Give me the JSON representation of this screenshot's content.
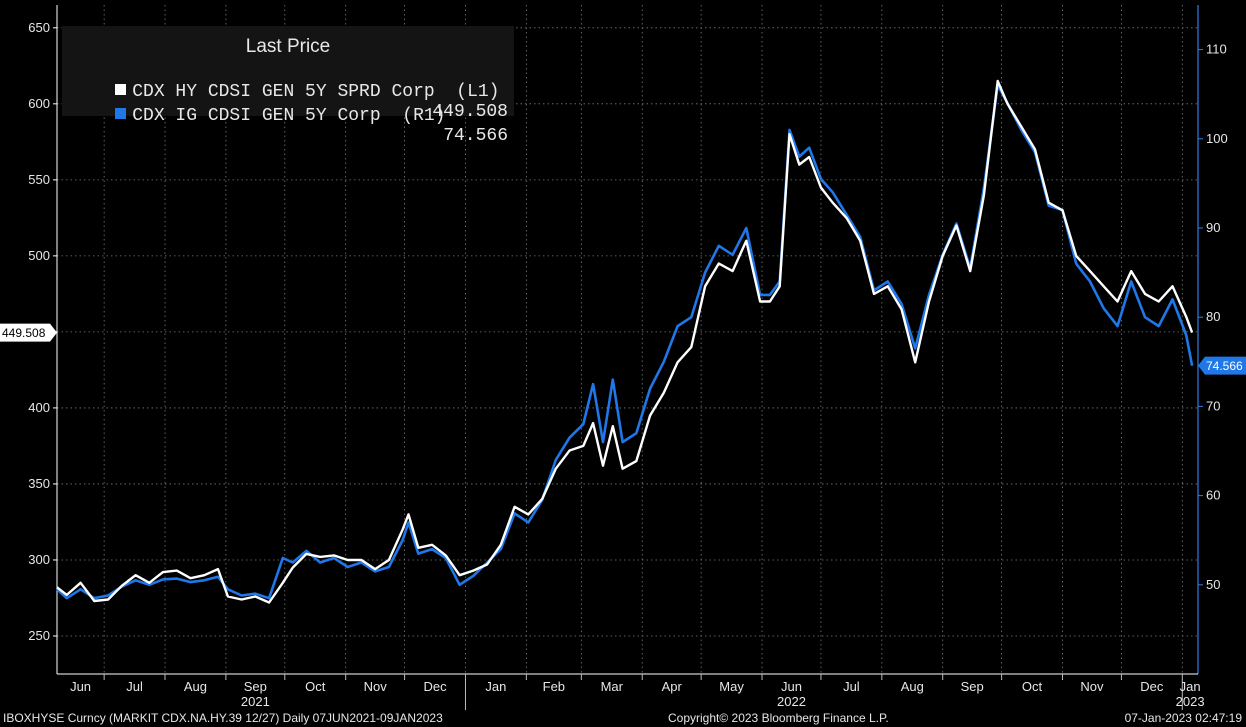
{
  "chart_data": {
    "type": "line",
    "legend": {
      "title": "Last Price",
      "placement": "top-left",
      "entries": [
        {
          "name": "CDX HY CDSI GEN 5Y SPRD Corp",
          "axis_tag": "(L1)",
          "last_price": "449.508",
          "color": "#ffffff"
        },
        {
          "name": "CDX IG CDSI GEN 5Y Corp",
          "axis_tag": "(R1)",
          "last_price": "74.566",
          "color": "#1f77e8"
        }
      ]
    },
    "left_axis": {
      "min": 225,
      "max": 665,
      "ticks": [
        250,
        300,
        350,
        400,
        450,
        500,
        550,
        600,
        650
      ]
    },
    "right_axis": {
      "min": 40,
      "max": 115,
      "ticks": [
        50,
        60,
        70,
        80,
        90,
        100,
        110
      ]
    },
    "last_value_labels": {
      "left": "449.508",
      "right": "74.566"
    },
    "x_axis": {
      "months": [
        "Jun",
        "Jul",
        "Aug",
        "Sep",
        "Oct",
        "Nov",
        "Dec",
        "Jan",
        "Feb",
        "Mar",
        "Apr",
        "May",
        "Jun",
        "Jul",
        "Aug",
        "Sep",
        "Oct",
        "Nov",
        "Dec",
        "Jan"
      ],
      "years": [
        {
          "label": "2021",
          "month_index": 3
        },
        {
          "label": "2022",
          "month_index": 12
        },
        {
          "label": "2023",
          "month_index": 19
        }
      ]
    },
    "grid": true,
    "series": [
      {
        "name": "CDX HY CDSI GEN 5Y SPRD Corp",
        "axis": "left",
        "color": "#ffffff",
        "points": [
          [
            "2021-06-07",
            282
          ],
          [
            "2021-06-12",
            277
          ],
          [
            "2021-06-19",
            285
          ],
          [
            "2021-06-26",
            273
          ],
          [
            "2021-07-03",
            274
          ],
          [
            "2021-07-10",
            283
          ],
          [
            "2021-07-17",
            290
          ],
          [
            "2021-07-24",
            285
          ],
          [
            "2021-07-31",
            292
          ],
          [
            "2021-08-07",
            293
          ],
          [
            "2021-08-14",
            288
          ],
          [
            "2021-08-21",
            290
          ],
          [
            "2021-08-28",
            294
          ],
          [
            "2021-09-02",
            276
          ],
          [
            "2021-09-09",
            274
          ],
          [
            "2021-09-16",
            276
          ],
          [
            "2021-09-23",
            272
          ],
          [
            "2021-09-30",
            285
          ],
          [
            "2021-10-05",
            295
          ],
          [
            "2021-10-12",
            304
          ],
          [
            "2021-10-19",
            302
          ],
          [
            "2021-10-26",
            303
          ],
          [
            "2021-11-02",
            300
          ],
          [
            "2021-11-09",
            300
          ],
          [
            "2021-11-16",
            294
          ],
          [
            "2021-11-23",
            300
          ],
          [
            "2021-11-30",
            320
          ],
          [
            "2021-12-03",
            330
          ],
          [
            "2021-12-08",
            308
          ],
          [
            "2021-12-15",
            310
          ],
          [
            "2021-12-22",
            303
          ],
          [
            "2021-12-29",
            290
          ],
          [
            "2022-01-05",
            293
          ],
          [
            "2022-01-12",
            297
          ],
          [
            "2022-01-19",
            310
          ],
          [
            "2022-01-26",
            335
          ],
          [
            "2022-02-02",
            330
          ],
          [
            "2022-02-09",
            340
          ],
          [
            "2022-02-16",
            360
          ],
          [
            "2022-02-23",
            372
          ],
          [
            "2022-03-02",
            375
          ],
          [
            "2022-03-07",
            390
          ],
          [
            "2022-03-12",
            362
          ],
          [
            "2022-03-17",
            388
          ],
          [
            "2022-03-22",
            360
          ],
          [
            "2022-03-29",
            365
          ],
          [
            "2022-04-05",
            395
          ],
          [
            "2022-04-12",
            410
          ],
          [
            "2022-04-19",
            430
          ],
          [
            "2022-04-26",
            440
          ],
          [
            "2022-05-03",
            480
          ],
          [
            "2022-05-10",
            495
          ],
          [
            "2022-05-17",
            490
          ],
          [
            "2022-05-24",
            510
          ],
          [
            "2022-05-31",
            470
          ],
          [
            "2022-06-05",
            470
          ],
          [
            "2022-06-10",
            480
          ],
          [
            "2022-06-15",
            580
          ],
          [
            "2022-06-20",
            560
          ],
          [
            "2022-06-25",
            565
          ],
          [
            "2022-07-01",
            545
          ],
          [
            "2022-07-07",
            535
          ],
          [
            "2022-07-14",
            525
          ],
          [
            "2022-07-21",
            510
          ],
          [
            "2022-07-28",
            475
          ],
          [
            "2022-08-04",
            480
          ],
          [
            "2022-08-11",
            465
          ],
          [
            "2022-08-18",
            430
          ],
          [
            "2022-08-25",
            470
          ],
          [
            "2022-09-01",
            500
          ],
          [
            "2022-09-08",
            520
          ],
          [
            "2022-09-15",
            490
          ],
          [
            "2022-09-22",
            540
          ],
          [
            "2022-09-29",
            615
          ],
          [
            "2022-10-04",
            600
          ],
          [
            "2022-10-11",
            585
          ],
          [
            "2022-10-18",
            570
          ],
          [
            "2022-10-25",
            535
          ],
          [
            "2022-11-01",
            530
          ],
          [
            "2022-11-08",
            500
          ],
          [
            "2022-11-15",
            490
          ],
          [
            "2022-11-22",
            480
          ],
          [
            "2022-11-29",
            470
          ],
          [
            "2022-12-06",
            490
          ],
          [
            "2022-12-13",
            475
          ],
          [
            "2022-12-20",
            470
          ],
          [
            "2022-12-27",
            480
          ],
          [
            "2023-01-03",
            460
          ],
          [
            "2023-01-06",
            449.508
          ]
        ]
      },
      {
        "name": "CDX IG CDSI GEN 5Y Corp",
        "axis": "right",
        "color": "#1f77e8",
        "points": [
          [
            "2021-06-07",
            49.5
          ],
          [
            "2021-06-12",
            48.5
          ],
          [
            "2021-06-19",
            49.5
          ],
          [
            "2021-06-26",
            48.5
          ],
          [
            "2021-07-03",
            48.8
          ],
          [
            "2021-07-10",
            49.8
          ],
          [
            "2021-07-17",
            50.5
          ],
          [
            "2021-07-24",
            50.0
          ],
          [
            "2021-07-31",
            50.6
          ],
          [
            "2021-08-07",
            50.7
          ],
          [
            "2021-08-14",
            50.3
          ],
          [
            "2021-08-21",
            50.5
          ],
          [
            "2021-08-28",
            50.9
          ],
          [
            "2021-09-02",
            49.5
          ],
          [
            "2021-09-09",
            48.8
          ],
          [
            "2021-09-16",
            49.0
          ],
          [
            "2021-09-23",
            48.5
          ],
          [
            "2021-09-30",
            53.0
          ],
          [
            "2021-10-05",
            52.5
          ],
          [
            "2021-10-12",
            53.8
          ],
          [
            "2021-10-19",
            52.5
          ],
          [
            "2021-10-26",
            53.0
          ],
          [
            "2021-11-02",
            52.0
          ],
          [
            "2021-11-09",
            52.5
          ],
          [
            "2021-11-16",
            51.5
          ],
          [
            "2021-11-23",
            52.0
          ],
          [
            "2021-11-30",
            55.0
          ],
          [
            "2021-12-03",
            57.0
          ],
          [
            "2021-12-08",
            53.5
          ],
          [
            "2021-12-15",
            54.0
          ],
          [
            "2021-12-22",
            53.0
          ],
          [
            "2021-12-29",
            50.0
          ],
          [
            "2022-01-05",
            51.0
          ],
          [
            "2022-01-12",
            52.5
          ],
          [
            "2022-01-19",
            54.0
          ],
          [
            "2022-01-26",
            58.0
          ],
          [
            "2022-02-02",
            57.0
          ],
          [
            "2022-02-09",
            59.5
          ],
          [
            "2022-02-16",
            64.0
          ],
          [
            "2022-02-23",
            66.5
          ],
          [
            "2022-03-02",
            68.0
          ],
          [
            "2022-03-07",
            72.5
          ],
          [
            "2022-03-12",
            66.0
          ],
          [
            "2022-03-17",
            73.0
          ],
          [
            "2022-03-22",
            66.0
          ],
          [
            "2022-03-29",
            67.0
          ],
          [
            "2022-04-05",
            72.0
          ],
          [
            "2022-04-12",
            75.0
          ],
          [
            "2022-04-19",
            79.0
          ],
          [
            "2022-04-26",
            80.0
          ],
          [
            "2022-05-03",
            85.0
          ],
          [
            "2022-05-10",
            88.0
          ],
          [
            "2022-05-17",
            87.0
          ],
          [
            "2022-05-24",
            90.0
          ],
          [
            "2022-05-31",
            82.5
          ],
          [
            "2022-06-05",
            82.5
          ],
          [
            "2022-06-10",
            84.0
          ],
          [
            "2022-06-15",
            101.0
          ],
          [
            "2022-06-20",
            98.0
          ],
          [
            "2022-06-25",
            99.0
          ],
          [
            "2022-07-01",
            95.5
          ],
          [
            "2022-07-07",
            94.0
          ],
          [
            "2022-07-14",
            91.5
          ],
          [
            "2022-07-21",
            89.0
          ],
          [
            "2022-07-28",
            83.0
          ],
          [
            "2022-08-04",
            84.0
          ],
          [
            "2022-08-11",
            81.5
          ],
          [
            "2022-08-18",
            76.5
          ],
          [
            "2022-08-25",
            82.5
          ],
          [
            "2022-09-01",
            87.0
          ],
          [
            "2022-09-08",
            90.5
          ],
          [
            "2022-09-15",
            85.5
          ],
          [
            "2022-09-22",
            94.5
          ],
          [
            "2022-09-29",
            106.0
          ],
          [
            "2022-10-04",
            104.0
          ],
          [
            "2022-10-11",
            101.0
          ],
          [
            "2022-10-18",
            98.5
          ],
          [
            "2022-10-25",
            92.5
          ],
          [
            "2022-11-01",
            92.0
          ],
          [
            "2022-11-08",
            86.0
          ],
          [
            "2022-11-15",
            84.0
          ],
          [
            "2022-11-22",
            81.0
          ],
          [
            "2022-11-29",
            79.0
          ],
          [
            "2022-12-06",
            84.0
          ],
          [
            "2022-12-13",
            80.0
          ],
          [
            "2022-12-20",
            79.0
          ],
          [
            "2022-12-27",
            82.0
          ],
          [
            "2023-01-03",
            78.0
          ],
          [
            "2023-01-06",
            74.566
          ]
        ]
      }
    ]
  },
  "footer": {
    "left": "IBOXHYSE Curncy (MARKIT CDX.NA.HY.39 12/27)  Daily 07JUN2021-09JAN2023",
    "center": "Copyright© 2023 Bloomberg Finance L.P.",
    "right": "07-Jan-2023 02:47:19"
  }
}
